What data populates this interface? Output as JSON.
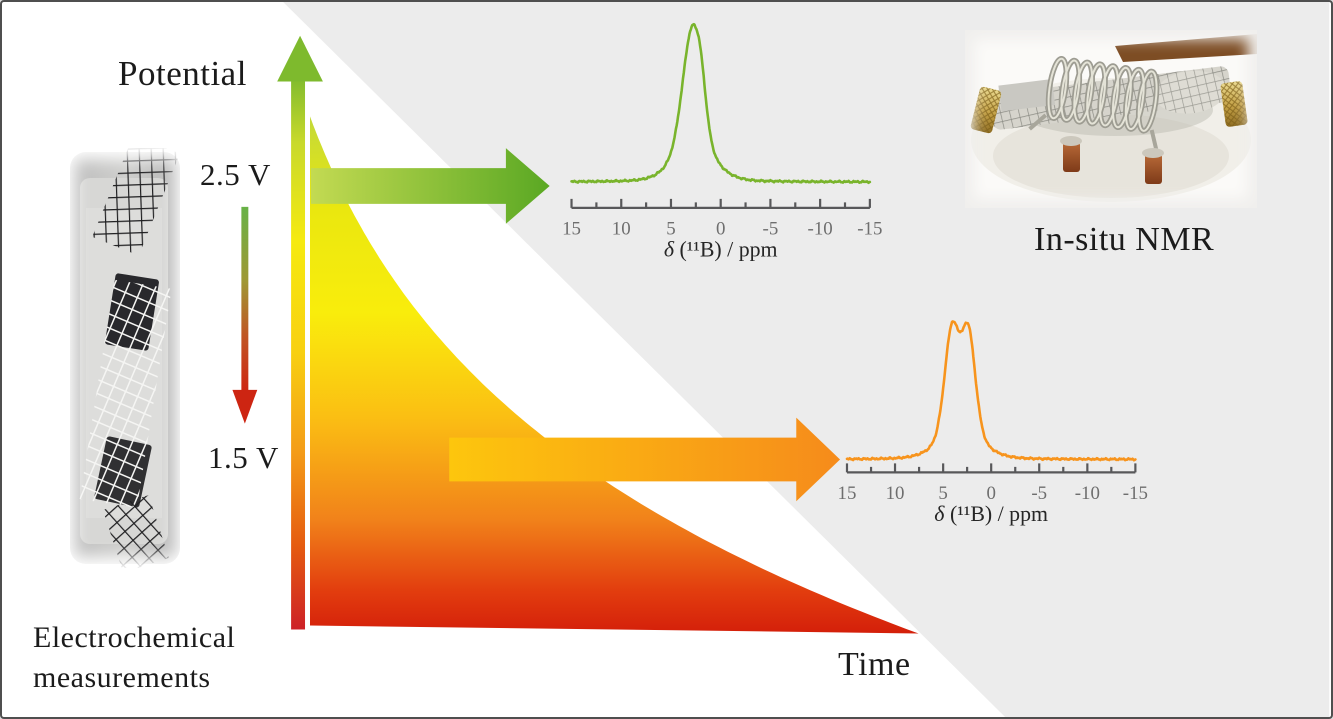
{
  "figure": {
    "y_axis_label": "Potential",
    "x_axis_label": "Time",
    "voltage_high": "2.5 V",
    "voltage_low": "1.5 V",
    "right_label": "In-situ NMR",
    "left_label_line1": "Electrochemical",
    "left_label_line2": "measurements"
  },
  "chart_data": [
    {
      "type": "line",
      "name": "11B NMR spectrum at 2.5 V",
      "color": "#79b42c",
      "xlabel": "δ (¹¹B) / ppm",
      "x_range": [
        15,
        -15
      ],
      "x_ticks": [
        15,
        10,
        5,
        0,
        -5,
        -10,
        -15
      ],
      "main_peaks_ppm": [
        3
      ],
      "peaks_ppm": [
        {
          "center": 2.95,
          "height": 1.0,
          "width": 0.95
        },
        {
          "center": 2.0,
          "height": 0.3,
          "width": 0.55
        },
        {
          "center": 2.7,
          "height": 0.3,
          "width": 2.0
        }
      ],
      "description": "single resonance centered near +3 ppm"
    },
    {
      "type": "line",
      "name": "11B NMR spectrum at 1.5 V",
      "color": "#f7941d",
      "xlabel": "δ (¹¹B) / ppm",
      "x_range": [
        15,
        -15
      ],
      "x_ticks": [
        15,
        10,
        5,
        0,
        -5,
        -10,
        -15
      ],
      "main_peaks_ppm": [
        4.1,
        2.4
      ],
      "peaks_ppm": [
        {
          "center": 4.1,
          "height": 1.0,
          "width": 0.78
        },
        {
          "center": 2.35,
          "height": 0.96,
          "width": 0.74
        },
        {
          "center": 3.2,
          "height": 0.22,
          "width": 2.2
        }
      ],
      "description": "two overlapping resonances near +4 and +2.4 ppm"
    }
  ],
  "decay_curve": {
    "type": "area",
    "x_axis": "Time",
    "y_axis": "Potential",
    "y_start": "2.5 V",
    "y_end": "1.5 V",
    "shape": "exponential decay from high potential (green/yellow) to low potential (red)"
  },
  "colors": {
    "background": "#ffffff",
    "diagonal_panel": "#ececec",
    "frame_border": "#4f4f4f",
    "spectrum_green": "#79b42c",
    "spectrum_orange": "#f7941d",
    "axis_gray": "#58585a",
    "tick_text": "#6e6e6e",
    "label_text": "#262626",
    "axis_gradient": [
      {
        "o": 0,
        "c": "#7eba2d"
      },
      {
        "o": 0.12,
        "c": "#c8d92c"
      },
      {
        "o": 0.3,
        "c": "#f6ea10"
      },
      {
        "o": 0.5,
        "c": "#f8d011"
      },
      {
        "o": 0.68,
        "c": "#f49c18"
      },
      {
        "o": 0.85,
        "c": "#e55b10"
      },
      {
        "o": 1,
        "c": "#cd2127"
      }
    ],
    "potential_arrow_gradient": [
      {
        "o": 0,
        "c": "#68b247"
      },
      {
        "o": 0.4,
        "c": "#9f9834"
      },
      {
        "o": 0.7,
        "c": "#c05524"
      },
      {
        "o": 1,
        "c": "#cd2512"
      }
    ],
    "curve_gradient": [
      {
        "o": 0,
        "c": "#c3d939"
      },
      {
        "o": 0.18,
        "c": "#eae70f"
      },
      {
        "o": 0.38,
        "c": "#f9ed0c"
      },
      {
        "o": 0.58,
        "c": "#fbbf13"
      },
      {
        "o": 0.78,
        "c": "#f1821a"
      },
      {
        "o": 0.92,
        "c": "#e23c0e"
      },
      {
        "o": 1,
        "c": "#d41f0a"
      }
    ],
    "green_arrow_gradient": [
      {
        "o": 0,
        "c": "#c3da52"
      },
      {
        "o": 1,
        "c": "#5aa823"
      }
    ],
    "orange_arrow_gradient": [
      {
        "o": 0,
        "c": "#fdc60d"
      },
      {
        "o": 1,
        "c": "#f68b1b"
      }
    ]
  }
}
